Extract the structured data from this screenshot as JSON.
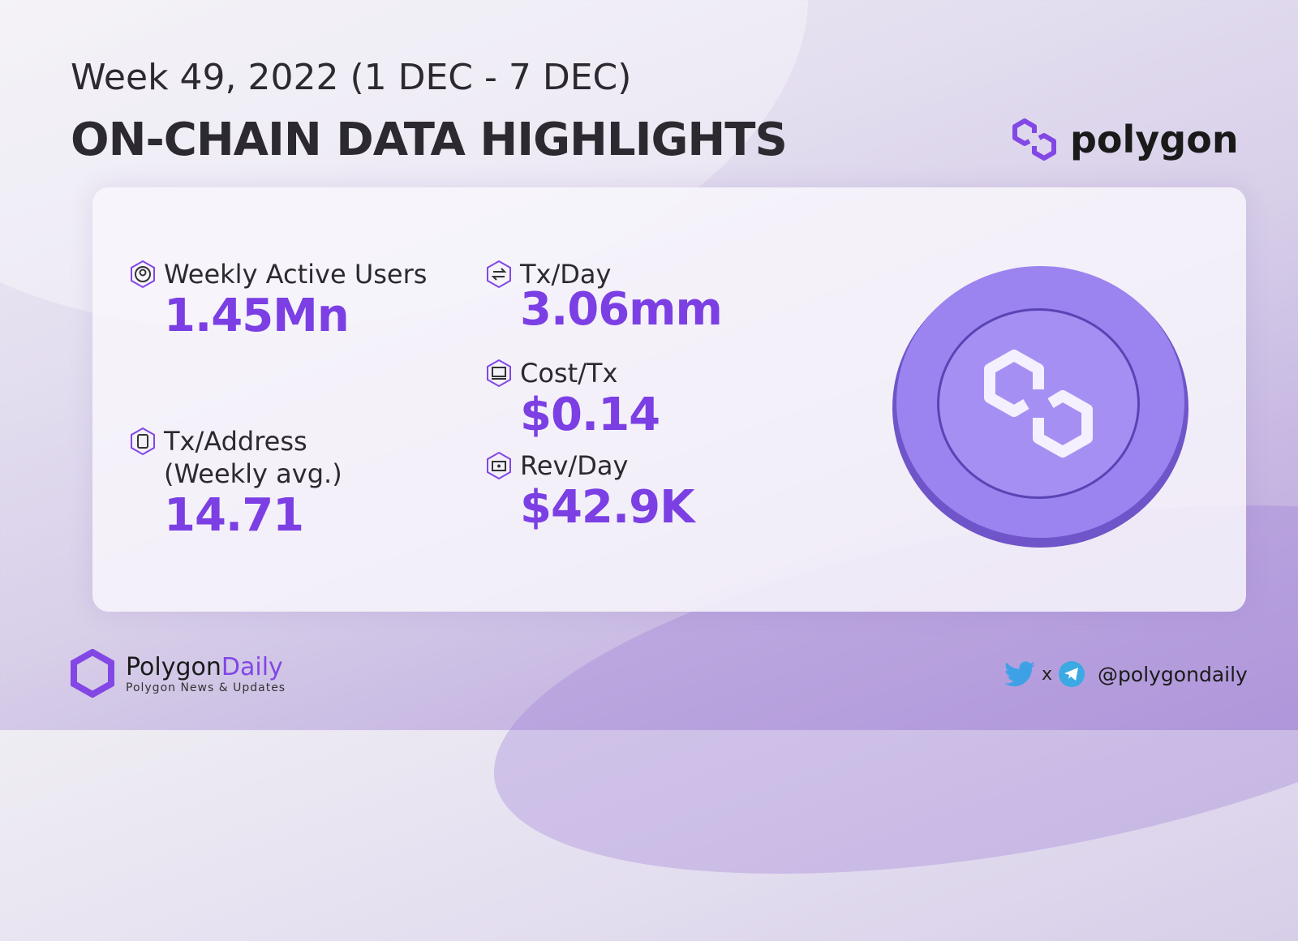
{
  "header": {
    "date": "Week 49, 2022 (1 DEC - 7 DEC)",
    "title": "ON-CHAIN DATA HIGHLIGHTS",
    "brand": "polygon"
  },
  "metrics": [
    {
      "label": "Weekly Active Users",
      "value": "1.45Mn",
      "icon": "user-icon"
    },
    {
      "label": "Tx/Address",
      "label2": "(Weekly avg.)",
      "value": "14.71",
      "icon": "clipboard-icon"
    },
    {
      "label": "Tx/Day",
      "value": "3.06mm",
      "icon": "exchange-icon"
    },
    {
      "label": "Cost/Tx",
      "value": "$0.14",
      "icon": "monitor-icon"
    },
    {
      "label": "Rev/Day",
      "value": "$42.9K",
      "icon": "wallet-icon"
    }
  ],
  "footer": {
    "brand_a": "Polygon",
    "brand_b": "Daily",
    "tagline": "Polygon News & Updates",
    "separator": "x",
    "handle": "@polygondaily"
  },
  "colors": {
    "accent": "#7b3fe4",
    "brand": "#8247e5"
  }
}
